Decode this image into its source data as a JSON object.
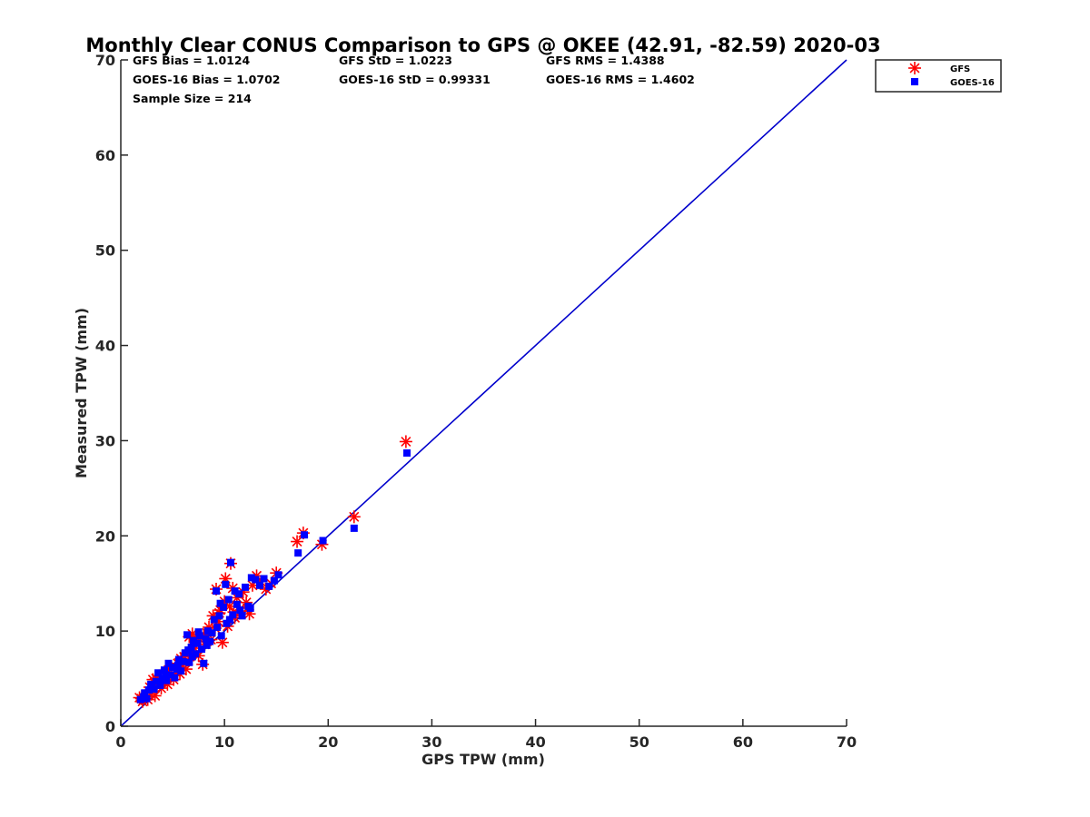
{
  "chart_data": {
    "type": "scatter",
    "title": "Monthly Clear CONUS Comparison to GPS @ OKEE (42.91, -82.59) 2020-03",
    "xlabel": "GPS TPW (mm)",
    "ylabel": "Measured TPW (mm)",
    "xlim": [
      0,
      70
    ],
    "ylim": [
      0,
      70
    ],
    "xticks": [
      "0",
      "10",
      "20",
      "30",
      "40",
      "50",
      "60",
      "70"
    ],
    "yticks": [
      "0",
      "10",
      "20",
      "30",
      "40",
      "50",
      "60",
      "70"
    ],
    "grid": false,
    "legend_position": "outside-top-right",
    "stats": {
      "gfs_bias": "GFS Bias = 1.0124",
      "gfs_std": "GFS StD = 1.0223",
      "gfs_rms": "GFS RMS = 1.4388",
      "goes_bias": "GOES-16 Bias = 1.0702",
      "goes_std": "GOES-16 StD = 0.99331",
      "goes_rms": "GOES-16 RMS = 1.4602",
      "sample_size": "Sample Size = 214"
    },
    "reference_line": {
      "x": [
        0,
        70
      ],
      "y": [
        0,
        70
      ],
      "color": "#0000cc"
    },
    "series": [
      {
        "name": "GFS",
        "marker": "asterisk",
        "color": "#ff0000",
        "points": [
          [
            1.8,
            3.0
          ],
          [
            2.1,
            2.6
          ],
          [
            2.4,
            3.3
          ],
          [
            2.6,
            2.8
          ],
          [
            2.8,
            4.1
          ],
          [
            3.0,
            3.6
          ],
          [
            3.1,
            4.9
          ],
          [
            3.3,
            3.2
          ],
          [
            3.5,
            4.4
          ],
          [
            3.7,
            5.3
          ],
          [
            3.9,
            4.0
          ],
          [
            4.1,
            4.8
          ],
          [
            4.3,
            5.6
          ],
          [
            4.5,
            4.4
          ],
          [
            4.7,
            5.2
          ],
          [
            4.9,
            6.1
          ],
          [
            5.1,
            4.9
          ],
          [
            5.3,
            5.7
          ],
          [
            5.5,
            6.6
          ],
          [
            5.7,
            5.5
          ],
          [
            5.9,
            6.4
          ],
          [
            6.1,
            7.3
          ],
          [
            6.3,
            6.0
          ],
          [
            6.5,
            6.9
          ],
          [
            6.7,
            7.8
          ],
          [
            6.9,
            9.7
          ],
          [
            7.1,
            8.2
          ],
          [
            7.3,
            8.9
          ],
          [
            7.5,
            7.4
          ],
          [
            7.7,
            9.3
          ],
          [
            7.9,
            6.5
          ],
          [
            8.1,
            8.6
          ],
          [
            8.3,
            9.8
          ],
          [
            8.5,
            10.4
          ],
          [
            8.7,
            9.1
          ],
          [
            8.9,
            11.6
          ],
          [
            9.1,
            10.3
          ],
          [
            9.2,
            14.4
          ],
          [
            9.4,
            11.0
          ],
          [
            9.6,
            12.2
          ],
          [
            9.8,
            8.8
          ],
          [
            10.0,
            13.1
          ],
          [
            10.1,
            15.5
          ],
          [
            10.3,
            10.5
          ],
          [
            10.5,
            12.6
          ],
          [
            10.6,
            17.1
          ],
          [
            10.8,
            14.5
          ],
          [
            11.0,
            11.4
          ],
          [
            11.2,
            13.5
          ],
          [
            11.5,
            12.1
          ],
          [
            11.8,
            14.1
          ],
          [
            12.1,
            13.0
          ],
          [
            12.4,
            11.8
          ],
          [
            12.7,
            14.8
          ],
          [
            13.1,
            15.8
          ],
          [
            13.5,
            15.2
          ],
          [
            14.0,
            14.4
          ],
          [
            14.5,
            15.0
          ],
          [
            15.0,
            16.1
          ],
          [
            17.0,
            19.4
          ],
          [
            17.6,
            20.3
          ],
          [
            19.4,
            19.1
          ],
          [
            22.5,
            22.0
          ],
          [
            27.5,
            29.9
          ],
          [
            2.0,
            2.9
          ],
          [
            3.4,
            5.0
          ],
          [
            4.6,
            5.9
          ],
          [
            6.6,
            9.4
          ],
          [
            8.0,
            9.6
          ],
          [
            9.5,
            11.9
          ],
          [
            10.9,
            12.0
          ],
          [
            12.2,
            12.4
          ],
          [
            5.8,
            7.1
          ],
          [
            7.2,
            9.0
          ]
        ]
      },
      {
        "name": "GOES-16",
        "marker": "square",
        "color": "#0000ff",
        "points": [
          [
            1.9,
            2.8
          ],
          [
            2.2,
            3.1
          ],
          [
            2.5,
            2.9
          ],
          [
            2.7,
            3.8
          ],
          [
            2.9,
            4.4
          ],
          [
            3.2,
            3.9
          ],
          [
            3.4,
            4.7
          ],
          [
            3.6,
            5.6
          ],
          [
            3.8,
            4.3
          ],
          [
            4.0,
            5.0
          ],
          [
            4.2,
            5.9
          ],
          [
            4.4,
            4.8
          ],
          [
            4.6,
            6.6
          ],
          [
            4.8,
            5.4
          ],
          [
            5.0,
            6.2
          ],
          [
            5.2,
            5.1
          ],
          [
            5.4,
            6.0
          ],
          [
            5.6,
            7.0
          ],
          [
            5.8,
            5.8
          ],
          [
            6.0,
            6.8
          ],
          [
            6.2,
            7.7
          ],
          [
            6.4,
            9.6
          ],
          [
            6.6,
            6.7
          ],
          [
            6.8,
            8.3
          ],
          [
            7.0,
            9.0
          ],
          [
            7.2,
            7.6
          ],
          [
            7.4,
            8.7
          ],
          [
            7.6,
            9.5
          ],
          [
            7.8,
            8.1
          ],
          [
            8.0,
            6.6
          ],
          [
            8.2,
            9.2
          ],
          [
            8.4,
            10.0
          ],
          [
            8.6,
            8.9
          ],
          [
            8.8,
            9.8
          ],
          [
            9.0,
            11.2
          ],
          [
            9.2,
            14.2
          ],
          [
            9.3,
            10.4
          ],
          [
            9.5,
            11.6
          ],
          [
            9.7,
            9.5
          ],
          [
            9.9,
            12.5
          ],
          [
            10.1,
            14.9
          ],
          [
            10.2,
            10.8
          ],
          [
            10.4,
            13.3
          ],
          [
            10.6,
            17.2
          ],
          [
            10.8,
            11.7
          ],
          [
            11.0,
            14.2
          ],
          [
            11.2,
            12.8
          ],
          [
            11.4,
            13.9
          ],
          [
            11.7,
            11.6
          ],
          [
            12.0,
            14.6
          ],
          [
            12.3,
            12.6
          ],
          [
            12.6,
            15.6
          ],
          [
            13.0,
            15.4
          ],
          [
            13.4,
            14.8
          ],
          [
            13.8,
            15.5
          ],
          [
            14.3,
            14.7
          ],
          [
            14.8,
            15.3
          ],
          [
            15.2,
            15.9
          ],
          [
            17.1,
            18.2
          ],
          [
            17.7,
            20.1
          ],
          [
            19.5,
            19.5
          ],
          [
            22.5,
            20.8
          ],
          [
            27.6,
            28.7
          ],
          [
            2.3,
            3.5
          ],
          [
            3.0,
            4.0
          ],
          [
            4.3,
            5.3
          ],
          [
            5.5,
            6.4
          ],
          [
            6.5,
            8.0
          ],
          [
            7.5,
            9.9
          ],
          [
            8.3,
            8.5
          ],
          [
            9.6,
            12.9
          ],
          [
            10.5,
            11.2
          ],
          [
            11.5,
            12.2
          ],
          [
            12.5,
            12.4
          ],
          [
            6.9,
            7.3
          ]
        ]
      }
    ]
  }
}
